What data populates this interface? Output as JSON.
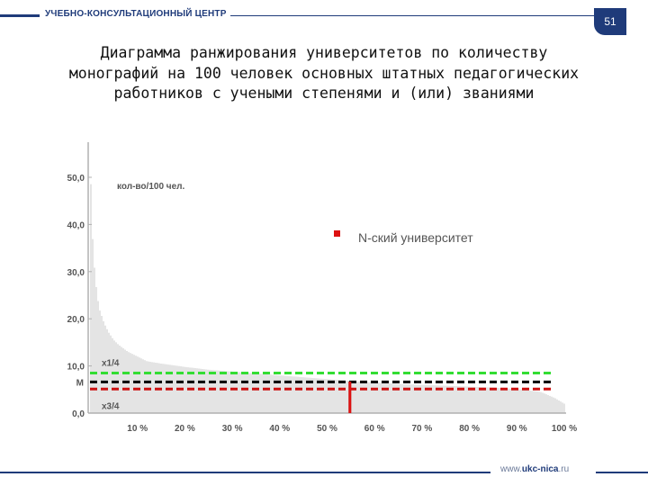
{
  "header": {
    "brand": "УЧЕБНО-КОНСУЛЬТАЦИОННЫЙ ЦЕНТР",
    "page_number": "51"
  },
  "title_lines": [
    "Диаграмма ранжирования университетов по количеству",
    "монографий на 100 человек основных штатных педагогических",
    "работников с учеными степенями и (или) званиями"
  ],
  "footer": {
    "site_prefix": "www.",
    "site_brand": "ukc-nica",
    "site_suffix": ".ru"
  },
  "colors": {
    "brand": "#1f3b7a",
    "bars": "#c8c8c8",
    "quartile_upper": "#33dd33",
    "median": "#000000",
    "quartile_lower": "#cc1111",
    "highlight": "#dd1111"
  },
  "chart_data": {
    "type": "bar",
    "unit_label": "кол-во/100 чел.",
    "y_ticks": [
      "0,0",
      "10,0",
      "20,0",
      "30,0",
      "40,0",
      "50,0"
    ],
    "ylim": [
      0,
      57
    ],
    "x_ticks": [
      "10 %",
      "20 %",
      "30 %",
      "40 %",
      "50 %",
      "60 %",
      "70 %",
      "80 %",
      "90 %",
      "100 %"
    ],
    "xlim": [
      0,
      100
    ],
    "curve_points": [
      [
        0,
        55
      ],
      [
        0.5,
        38
      ],
      [
        1,
        30
      ],
      [
        1.5,
        25
      ],
      [
        2,
        22
      ],
      [
        3,
        19
      ],
      [
        4,
        17
      ],
      [
        5,
        15.5
      ],
      [
        6,
        14.5
      ],
      [
        8,
        13
      ],
      [
        10,
        12
      ],
      [
        12,
        11
      ],
      [
        15,
        10.5
      ],
      [
        20,
        9.8
      ],
      [
        25,
        9.2
      ],
      [
        30,
        8.8
      ],
      [
        35,
        8.4
      ],
      [
        40,
        8.0
      ],
      [
        45,
        7.6
      ],
      [
        50,
        7.2
      ],
      [
        55,
        6.8
      ],
      [
        60,
        6.5
      ],
      [
        65,
        6.2
      ],
      [
        70,
        6.0
      ],
      [
        75,
        5.8
      ],
      [
        80,
        5.6
      ],
      [
        85,
        5.4
      ],
      [
        90,
        5.1
      ],
      [
        95,
        4.5
      ],
      [
        98,
        3.2
      ],
      [
        100,
        2.0
      ]
    ],
    "reference_lines": [
      {
        "label": "x1/4",
        "value": 8.5,
        "color": "#33dd33"
      },
      {
        "label": "M",
        "value": 6.6,
        "color": "#000000"
      },
      {
        "label": "x3/4",
        "value": 5.1,
        "color": "#cc1111"
      }
    ],
    "highlight": {
      "legend": "N-ский университет",
      "x": 54.8,
      "value": 6.7,
      "color": "#dd1111"
    },
    "grid": false
  }
}
